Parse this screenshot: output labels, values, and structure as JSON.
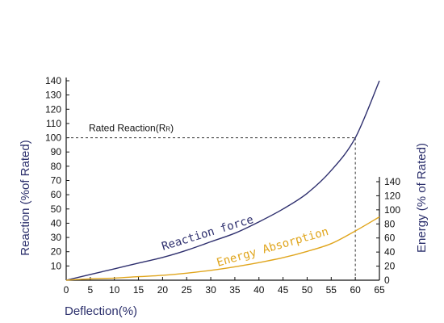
{
  "chart_data": {
    "type": "line",
    "xlabel": "Deflection(%)",
    "ylabel": "Reaction (%of Rated)",
    "y2label": "Energy (% of Rated)",
    "xlim": [
      0,
      65
    ],
    "ylim": [
      0,
      140
    ],
    "y2lim": [
      0,
      140
    ],
    "x_ticks": [
      0,
      5,
      10,
      15,
      20,
      25,
      30,
      35,
      40,
      45,
      50,
      55,
      60,
      65
    ],
    "y_ticks": [
      10,
      20,
      30,
      40,
      50,
      60,
      70,
      80,
      90,
      100,
      110,
      120,
      130,
      140
    ],
    "y2_ticks": [
      0,
      20,
      40,
      60,
      80,
      100,
      120,
      140
    ],
    "grid": false,
    "rated_reaction": {
      "label": "Rated Reaction(R",
      "label_subscript": "R",
      "label_close": ")",
      "y": 100,
      "x": 60
    },
    "series": [
      {
        "name": "Reaction force",
        "axis": "left",
        "color": "#2e2f6e",
        "x": [
          0,
          5,
          10,
          15,
          20,
          25,
          30,
          35,
          40,
          45,
          50,
          55,
          60,
          65
        ],
        "y": [
          0,
          4,
          8,
          12,
          16,
          21,
          27,
          33,
          41,
          50,
          61,
          77,
          100,
          140
        ]
      },
      {
        "name": "Energy Absorption",
        "axis": "right",
        "color": "#e0a51c",
        "x": [
          0,
          5,
          10,
          15,
          20,
          25,
          30,
          35,
          40,
          45,
          50,
          55,
          60,
          65
        ],
        "y": [
          0,
          2,
          3,
          5,
          7,
          10,
          14,
          19,
          25,
          32,
          41,
          52,
          70,
          90
        ]
      }
    ]
  }
}
